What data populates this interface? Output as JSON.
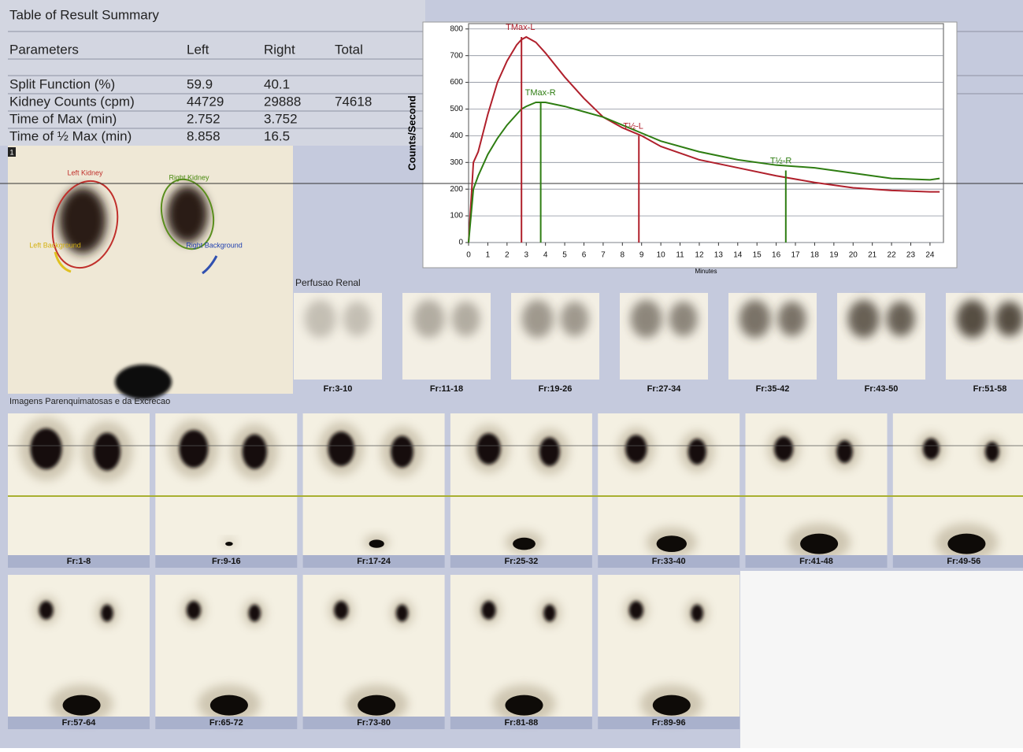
{
  "table": {
    "title": "Table of Result Summary",
    "header": [
      "Parameters",
      "Left",
      "Right",
      "Total"
    ],
    "rows": [
      [
        "Split Function (%)",
        "59.9",
        "40.1"
      ],
      [
        "Kidney Counts (cpm)",
        "44729",
        "29888",
        "74618"
      ],
      [
        "Time of Max (min)",
        "2.752",
        "3.752"
      ],
      [
        "Time of ½ Max (min)",
        "8.858",
        "16.5"
      ]
    ]
  },
  "roi_image": {
    "marker": "1",
    "labels": [
      "Left Kidney",
      "Right Kidney",
      "Left Background",
      "Right Background"
    ]
  },
  "chart_data": {
    "type": "line",
    "x_label": "Minutes",
    "y_label": "Counts/Second",
    "x": [
      0,
      0.25,
      0.5,
      1,
      1.5,
      2,
      2.5,
      2.75,
      3,
      3.5,
      4,
      5,
      6,
      7,
      8,
      9,
      10,
      12,
      14,
      16,
      18,
      20,
      22,
      24,
      24.5
    ],
    "series": [
      {
        "name": "Left",
        "color": "#b0202c",
        "values": [
          0,
          300,
          340,
          480,
          600,
          680,
          740,
          760,
          770,
          750,
          710,
          620,
          540,
          470,
          430,
          400,
          360,
          310,
          280,
          250,
          225,
          205,
          195,
          190,
          190
        ]
      },
      {
        "name": "Right",
        "color": "#2e7d12",
        "values": [
          0,
          200,
          250,
          330,
          390,
          440,
          480,
          500,
          510,
          525,
          525,
          510,
          490,
          470,
          440,
          410,
          380,
          340,
          310,
          290,
          280,
          260,
          240,
          235,
          240
        ]
      }
    ],
    "annotations": [
      {
        "label": "TMax-L",
        "x": 2.752,
        "y": 770,
        "color": "#b0202c"
      },
      {
        "label": "TMax-R",
        "x": 3.752,
        "y": 525,
        "color": "#2e7d12"
      },
      {
        "label": "T½-L",
        "x": 8.858,
        "y": 400,
        "color": "#b0202c"
      },
      {
        "label": "T½-R",
        "x": 16.5,
        "y": 270,
        "color": "#2e7d12"
      }
    ],
    "xlim": [
      0,
      24.7
    ],
    "ylim": [
      0,
      820
    ],
    "xticks": [
      0,
      1,
      2,
      3,
      4,
      5,
      6,
      7,
      8,
      9,
      10,
      11,
      12,
      13,
      14,
      15,
      16,
      17,
      18,
      19,
      20,
      21,
      22,
      23,
      24
    ],
    "yticks": [
      0,
      100,
      200,
      300,
      400,
      500,
      600,
      700,
      800
    ],
    "grid": true
  },
  "perfusion": {
    "title": "Perfusao Renal",
    "frames": [
      "Fr:3-10",
      "Fr:11-18",
      "Fr:19-26",
      "Fr:27-34",
      "Fr:35-42",
      "Fr:43-50",
      "Fr:51-58"
    ]
  },
  "excretion": {
    "title": "Imagens Parenquimatosas e da Excrecao",
    "frames": [
      "Fr:1-8",
      "Fr:9-16",
      "Fr:17-24",
      "Fr:25-32",
      "Fr:33-40",
      "Fr:41-48",
      "Fr:49-56",
      "Fr:57-64",
      "Fr:65-72",
      "Fr:73-80",
      "Fr:81-88",
      "Fr:89-96"
    ]
  }
}
